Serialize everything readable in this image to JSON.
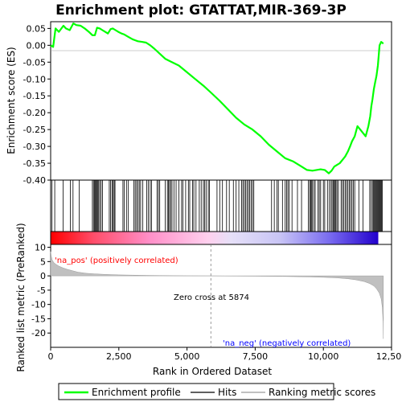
{
  "chart_data": {
    "type": "line",
    "title": "Enrichment plot: GTATTAT,MIR-369-3P",
    "dataset_size": 12200,
    "top_panel": {
      "ylabel": "Enrichment score (ES)",
      "ylim": [
        -0.4,
        0.07
      ],
      "yticks": [
        0.05,
        0.0,
        -0.05,
        -0.1,
        -0.15,
        -0.2,
        -0.25,
        -0.3,
        -0.35,
        -0.4
      ],
      "ytick_labels": [
        "0.05",
        "0.00",
        "-0.05",
        "-0.10",
        "-0.15",
        "-0.20",
        "-0.25",
        "-0.30",
        "-0.35",
        "-0.40"
      ],
      "series": [
        {
          "name": "Enrichment profile",
          "color": "#00ff00",
          "x": [
            0,
            90,
            180,
            300,
            470,
            560,
            700,
            830,
            940,
            1100,
            1250,
            1400,
            1530,
            1620,
            1700,
            1800,
            1900,
            2000,
            2100,
            2200,
            2280,
            2380,
            2480,
            2600,
            2700,
            2850,
            3000,
            3100,
            3200,
            3350,
            3500,
            3650,
            3800,
            4000,
            4200,
            4400,
            4700,
            5000,
            5300,
            5600,
            5874,
            6200,
            6500,
            6800,
            7100,
            7400,
            7700,
            8000,
            8300,
            8600,
            8900,
            9200,
            9400,
            9600,
            9750,
            9900,
            10050,
            10200,
            10300,
            10400,
            10500,
            10600,
            10700,
            10800,
            10900,
            10980,
            11050,
            11150,
            11250,
            11350,
            11450,
            11550,
            11650,
            11720,
            11760,
            11800,
            11850,
            11900,
            11950,
            12000,
            12060,
            12120,
            12200
          ],
          "y": [
            0.0,
            -0.005,
            0.05,
            0.04,
            0.058,
            0.05,
            0.045,
            0.065,
            0.06,
            0.058,
            0.05,
            0.04,
            0.03,
            0.03,
            0.052,
            0.05,
            0.045,
            0.04,
            0.035,
            0.048,
            0.05,
            0.045,
            0.04,
            0.035,
            0.032,
            0.025,
            0.018,
            0.015,
            0.012,
            0.01,
            0.008,
            0.0,
            -0.01,
            -0.025,
            -0.04,
            -0.048,
            -0.06,
            -0.08,
            -0.1,
            -0.12,
            -0.14,
            -0.165,
            -0.19,
            -0.215,
            -0.235,
            -0.25,
            -0.27,
            -0.295,
            -0.315,
            -0.335,
            -0.345,
            -0.36,
            -0.37,
            -0.372,
            -0.37,
            -0.368,
            -0.37,
            -0.38,
            -0.372,
            -0.36,
            -0.355,
            -0.35,
            -0.34,
            -0.33,
            -0.315,
            -0.3,
            -0.285,
            -0.27,
            -0.24,
            -0.25,
            -0.26,
            -0.27,
            -0.24,
            -0.21,
            -0.18,
            -0.16,
            -0.13,
            -0.11,
            -0.09,
            -0.06,
            0.0,
            0.01,
            0.005
          ]
        }
      ]
    },
    "hits": [
      50,
      150,
      460,
      720,
      820,
      1050,
      1530,
      1570,
      1610,
      1640,
      1660,
      1690,
      1720,
      1760,
      1800,
      1850,
      1900,
      2150,
      2200,
      2250,
      2290,
      2330,
      2360,
      2650,
      2700,
      2780,
      2850,
      3050,
      3100,
      3150,
      3200,
      3250,
      3300,
      3380,
      3520,
      3580,
      3650,
      3700,
      3900,
      3950,
      4000,
      4200,
      4280,
      4320,
      4360,
      4400,
      4450,
      4520,
      4600,
      4700,
      4800,
      4850,
      4950,
      5050,
      5100,
      5200,
      5250,
      5330,
      5450,
      5520,
      5600,
      5650,
      5700,
      5780,
      5820,
      6100,
      6200,
      6300,
      6450,
      6550,
      6700,
      6800,
      6900,
      7000,
      7050,
      7100,
      7150,
      7200,
      7250,
      7300,
      7350,
      7400,
      7450,
      8100,
      8200,
      8300,
      8350,
      8500,
      8600,
      8650,
      8700,
      8750,
      8850,
      9050,
      9200,
      9450,
      9500,
      9530,
      9560,
      9600,
      9650,
      9700,
      9800,
      9850,
      9900,
      10000,
      10050,
      10150,
      10220,
      10280,
      10320,
      10360,
      10400,
      10430,
      10460,
      10500,
      10550,
      10650,
      10700,
      10750,
      10800,
      10850,
      10900,
      10950,
      11000,
      11050,
      11100,
      11150,
      11300,
      11450,
      11700,
      11750,
      11800,
      11830,
      11860,
      11890,
      11920,
      11950,
      11980,
      12010,
      12040,
      12070,
      12100,
      12130,
      12160
    ],
    "bottom_panel": {
      "ylabel": "Ranked list metric (PreRanked)",
      "xlabel": "Rank in Ordered Dataset",
      "ylim": [
        -25,
        11
      ],
      "yticks": [
        10,
        5,
        0,
        -5,
        -10,
        -15,
        -20
      ],
      "ytick_labels": [
        "10",
        "5",
        "0",
        "-5",
        "-10",
        "-15",
        "-20"
      ],
      "metric_x": [
        0,
        20,
        60,
        120,
        200,
        300,
        450,
        600,
        800,
        1000,
        1300,
        1600,
        2000,
        2500,
        3000,
        3500,
        4000,
        4500,
        5000,
        5874,
        6500,
        7500,
        8500,
        9500,
        10000,
        10500,
        10900,
        11200,
        11500,
        11700,
        11850,
        11950,
        12050,
        12120,
        12160,
        12190,
        12200
      ],
      "metric_y": [
        8.5,
        7.0,
        5.5,
        4.6,
        4.0,
        3.4,
        2.8,
        2.3,
        1.8,
        1.3,
        0.9,
        0.7,
        0.5,
        0.35,
        0.25,
        0.18,
        0.12,
        0.07,
        0.03,
        0.0,
        -0.04,
        -0.1,
        -0.2,
        -0.35,
        -0.5,
        -0.7,
        -1.0,
        -1.4,
        -2.0,
        -2.7,
        -3.5,
        -4.5,
        -6.0,
        -8.0,
        -11.0,
        -16.0,
        -22.0
      ],
      "zero_cross_label": "Zero cross at 5874",
      "zero_cross_x": 5874,
      "pos_label": "'na_pos' (positively correlated)",
      "neg_label": "'na_neg' (negatively correlated)"
    },
    "xlim": [
      0,
      12500
    ],
    "xticks": [
      0,
      2500,
      5000,
      7500,
      10000,
      12500
    ],
    "xtick_labels": [
      "0",
      "2,500",
      "5,000",
      "7,500",
      "10,000",
      "12,500"
    ],
    "legend": {
      "placement": "bottom",
      "items": [
        {
          "label": "Enrichment profile",
          "color": "#00ff00"
        },
        {
          "label": "Hits",
          "color": "#000000"
        },
        {
          "label": "Ranking metric scores",
          "color": "#c0c0c0"
        }
      ]
    },
    "colors": {
      "positive_label": "#ff0000",
      "negative_label": "#0000ff",
      "metric_fill": "#c0c0c0",
      "zero_line": "#808080"
    }
  }
}
